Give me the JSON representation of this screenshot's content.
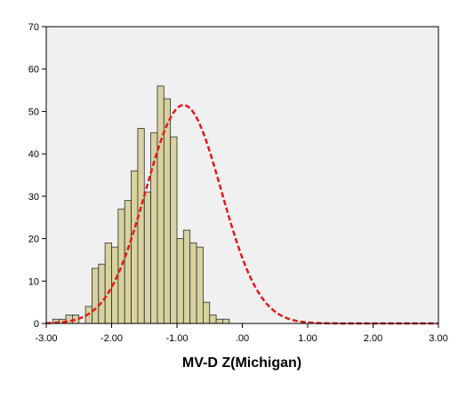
{
  "chart_data": {
    "type": "bar",
    "title": "",
    "xlabel": "MV-D Z(Michigan)",
    "ylabel": "",
    "xlim": [
      -3.0,
      3.0
    ],
    "ylim": [
      0,
      70
    ],
    "x_ticks": [
      "-3.00",
      "-2.00",
      "-1.00",
      ".00",
      "1.00",
      "2.00",
      "3.00"
    ],
    "y_ticks": [
      "0",
      "10",
      "20",
      "30",
      "40",
      "50",
      "60",
      "70"
    ],
    "bin_width": 0.1,
    "bins": [
      {
        "x0": -3.0,
        "x1": -2.9,
        "count": 0
      },
      {
        "x0": -2.9,
        "x1": -2.8,
        "count": 1
      },
      {
        "x0": -2.8,
        "x1": -2.7,
        "count": 1
      },
      {
        "x0": -2.7,
        "x1": -2.6,
        "count": 2
      },
      {
        "x0": -2.6,
        "x1": -2.5,
        "count": 2
      },
      {
        "x0": -2.5,
        "x1": -2.4,
        "count": 0
      },
      {
        "x0": -2.4,
        "x1": -2.3,
        "count": 4
      },
      {
        "x0": -2.3,
        "x1": -2.2,
        "count": 13
      },
      {
        "x0": -2.2,
        "x1": -2.1,
        "count": 14
      },
      {
        "x0": -2.1,
        "x1": -2.0,
        "count": 19
      },
      {
        "x0": -2.0,
        "x1": -1.9,
        "count": 18
      },
      {
        "x0": -1.9,
        "x1": -1.8,
        "count": 27
      },
      {
        "x0": -1.8,
        "x1": -1.7,
        "count": 29
      },
      {
        "x0": -1.7,
        "x1": -1.6,
        "count": 36
      },
      {
        "x0": -1.6,
        "x1": -1.5,
        "count": 46
      },
      {
        "x0": -1.5,
        "x1": -1.4,
        "count": 31
      },
      {
        "x0": -1.4,
        "x1": -1.3,
        "count": 45
      },
      {
        "x0": -1.3,
        "x1": -1.2,
        "count": 56
      },
      {
        "x0": -1.2,
        "x1": -1.1,
        "count": 53
      },
      {
        "x0": -1.1,
        "x1": -1.0,
        "count": 44
      },
      {
        "x0": -1.0,
        "x1": -0.9,
        "count": 20
      },
      {
        "x0": -0.9,
        "x1": -0.8,
        "count": 22
      },
      {
        "x0": -0.8,
        "x1": -0.7,
        "count": 19
      },
      {
        "x0": -0.7,
        "x1": -0.6,
        "count": 18
      },
      {
        "x0": -0.6,
        "x1": -0.5,
        "count": 5
      },
      {
        "x0": -0.5,
        "x1": -0.4,
        "count": 2
      },
      {
        "x0": -0.4,
        "x1": -0.3,
        "count": 1
      },
      {
        "x0": -0.3,
        "x1": -0.2,
        "count": 1
      }
    ],
    "normal_curve": {
      "mean": -0.9,
      "peak": 51.5,
      "sd": 0.58,
      "style": "dashed",
      "color": "#e31a1c"
    },
    "grid": false,
    "colors": {
      "bar_fill": "#d8d2a0",
      "bar_stroke": "#2b2b2b",
      "plot_bg": "#f0f0f0",
      "curve": "#e31a1c"
    }
  }
}
